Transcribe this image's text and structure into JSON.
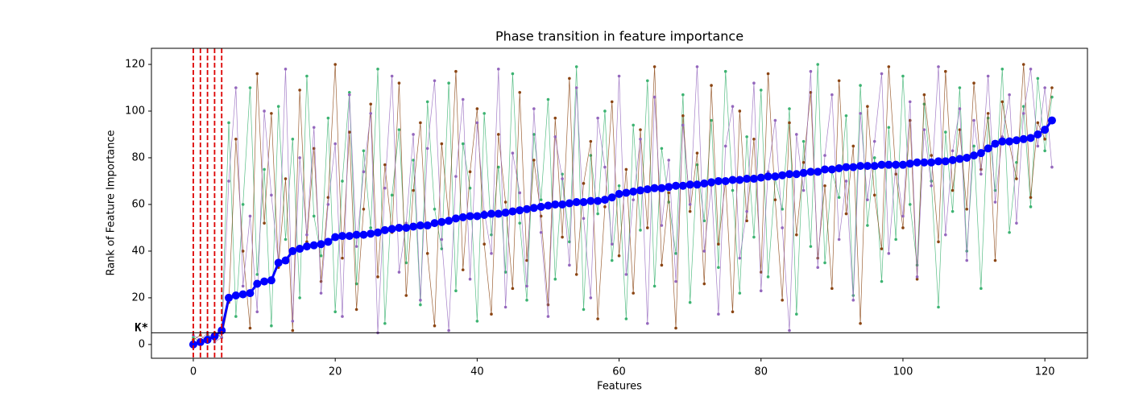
{
  "chart_data": {
    "type": "line",
    "title": "Phase transition in feature importance",
    "xlabel": "Features",
    "ylabel": "Rank of Feature Importance",
    "x": [
      0,
      1,
      2,
      3,
      4,
      5,
      6,
      7,
      8,
      9,
      10,
      11,
      12,
      13,
      14,
      15,
      16,
      17,
      18,
      19,
      20,
      21,
      22,
      23,
      24,
      25,
      26,
      27,
      28,
      29,
      30,
      31,
      32,
      33,
      34,
      35,
      36,
      37,
      38,
      39,
      40,
      41,
      42,
      43,
      44,
      45,
      46,
      47,
      48,
      49,
      50,
      51,
      52,
      53,
      54,
      55,
      56,
      57,
      58,
      59,
      60,
      61,
      62,
      63,
      64,
      65,
      66,
      67,
      68,
      69,
      70,
      71,
      72,
      73,
      74,
      75,
      76,
      77,
      78,
      79,
      80,
      81,
      82,
      83,
      84,
      85,
      86,
      87,
      88,
      89,
      90,
      91,
      92,
      93,
      94,
      95,
      96,
      97,
      98,
      99,
      100,
      101,
      102,
      103,
      104,
      105,
      106,
      107,
      108,
      109,
      110,
      111,
      112,
      113,
      114,
      115,
      116,
      117,
      118,
      119,
      120,
      121
    ],
    "series": [
      {
        "color": "#3cb371",
        "values": [
          3,
          1,
          4,
          2,
          5,
          95,
          12,
          60,
          110,
          30,
          75,
          8,
          102,
          45,
          88,
          20,
          115,
          55,
          38,
          97,
          14,
          70,
          108,
          26,
          83,
          50,
          118,
          9,
          64,
          92,
          35,
          79,
          17,
          104,
          58,
          41,
          112,
          23,
          86,
          67,
          10,
          99,
          47,
          76,
          31,
          116,
          52,
          19,
          90,
          62,
          105,
          28,
          73,
          44,
          119,
          15,
          81,
          56,
          100,
          36,
          68,
          11,
          94,
          49,
          113,
          25,
          84,
          61,
          39,
          107,
          18,
          77,
          53,
          96,
          33,
          117,
          66,
          22,
          89,
          46,
          109,
          29,
          71,
          58,
          101,
          13,
          87,
          42,
          120,
          35,
          74,
          63,
          98,
          21,
          111,
          51,
          80,
          27,
          93,
          45,
          115,
          60,
          34,
          103,
          70,
          16,
          91,
          57,
          110,
          40,
          85,
          24,
          97,
          66,
          118,
          48,
          78,
          102,
          59,
          114,
          83,
          106
        ]
      },
      {
        "color": "#8b4513",
        "values": [
          2,
          4,
          1,
          5,
          3,
          18,
          88,
          40,
          7,
          116,
          52,
          99,
          33,
          71,
          6,
          109,
          44,
          84,
          27,
          63,
          120,
          37,
          91,
          15,
          58,
          103,
          29,
          77,
          48,
          112,
          21,
          66,
          95,
          39,
          8,
          86,
          54,
          117,
          32,
          74,
          101,
          43,
          13,
          90,
          61,
          24,
          108,
          36,
          79,
          55,
          17,
          97,
          46,
          114,
          30,
          69,
          87,
          11,
          59,
          104,
          38,
          75,
          22,
          92,
          50,
          119,
          34,
          65,
          7,
          98,
          57,
          82,
          26,
          111,
          43,
          70,
          14,
          100,
          53,
          88,
          31,
          116,
          62,
          19,
          95,
          47,
          78,
          108,
          37,
          68,
          24,
          113,
          56,
          85,
          9,
          102,
          64,
          41,
          119,
          73,
          50,
          96,
          28,
          107,
          81,
          44,
          117,
          66,
          92,
          58,
          112,
          75,
          99,
          36,
          104,
          86,
          71,
          120,
          63,
          95,
          88,
          110
        ]
      },
      {
        "color": "#9467bd",
        "values": [
          4,
          2,
          5,
          1,
          3,
          70,
          110,
          25,
          55,
          14,
          100,
          64,
          35,
          118,
          10,
          80,
          47,
          93,
          22,
          60,
          86,
          12,
          107,
          42,
          74,
          99,
          5,
          67,
          115,
          31,
          52,
          90,
          19,
          84,
          113,
          45,
          6,
          72,
          105,
          28,
          95,
          57,
          39,
          118,
          16,
          82,
          65,
          25,
          101,
          48,
          12,
          89,
          71,
          34,
          110,
          54,
          20,
          97,
          76,
          43,
          115,
          30,
          62,
          88,
          9,
          106,
          51,
          79,
          27,
          94,
          60,
          119,
          40,
          68,
          13,
          85,
          102,
          37,
          57,
          112,
          23,
          74,
          96,
          50,
          6,
          90,
          66,
          117,
          33,
          81,
          107,
          45,
          70,
          19,
          99,
          62,
          87,
          116,
          39,
          78,
          55,
          104,
          29,
          92,
          68,
          119,
          47,
          83,
          101,
          36,
          96,
          73,
          115,
          61,
          89,
          107,
          52,
          99,
          118,
          85,
          110,
          76
        ]
      },
      {
        "color": "#0000ff",
        "values": [
          0,
          1,
          2,
          3.5,
          6,
          20,
          21,
          21.5,
          22,
          26,
          27,
          27.5,
          35,
          36,
          40,
          41,
          42,
          42.5,
          43,
          44,
          46,
          46.5,
          46.5,
          47,
          47,
          47.5,
          48,
          49,
          49.5,
          50,
          50,
          50.5,
          51,
          51,
          52,
          52.5,
          53,
          54,
          54.5,
          55,
          55,
          55.5,
          56,
          56,
          56.5,
          57,
          57.5,
          58,
          58.5,
          59,
          59.5,
          60,
          60,
          60.5,
          61,
          61,
          61.5,
          61.5,
          62,
          63,
          64.5,
          65,
          65.5,
          66,
          66.5,
          67,
          67,
          67.5,
          68,
          68,
          68.5,
          68.5,
          69,
          69.5,
          70,
          70,
          70.5,
          70.5,
          71,
          71,
          71.5,
          72,
          72,
          72.5,
          73,
          73,
          73.5,
          74,
          74,
          75,
          75,
          75.5,
          76,
          76,
          76.5,
          76.5,
          76.5,
          77,
          77,
          77,
          77,
          77.5,
          78,
          78,
          78,
          78.5,
          78.5,
          79,
          79.5,
          80,
          81,
          82,
          84,
          86,
          87,
          87,
          87.5,
          88,
          88.5,
          90,
          92,
          96
        ]
      }
    ],
    "vlines": {
      "color": "#dd0000",
      "values": [
        0,
        1,
        2,
        3,
        4
      ]
    },
    "hline": {
      "value": 5,
      "label": "K*",
      "color": "#000000"
    },
    "xlim": [
      -5.9,
      126
    ],
    "xticks": [
      0,
      20,
      40,
      60,
      80,
      100,
      120
    ],
    "ylim": [
      -5.9,
      126.9
    ],
    "yticks": [
      0,
      20,
      40,
      60,
      80,
      100,
      120
    ]
  }
}
